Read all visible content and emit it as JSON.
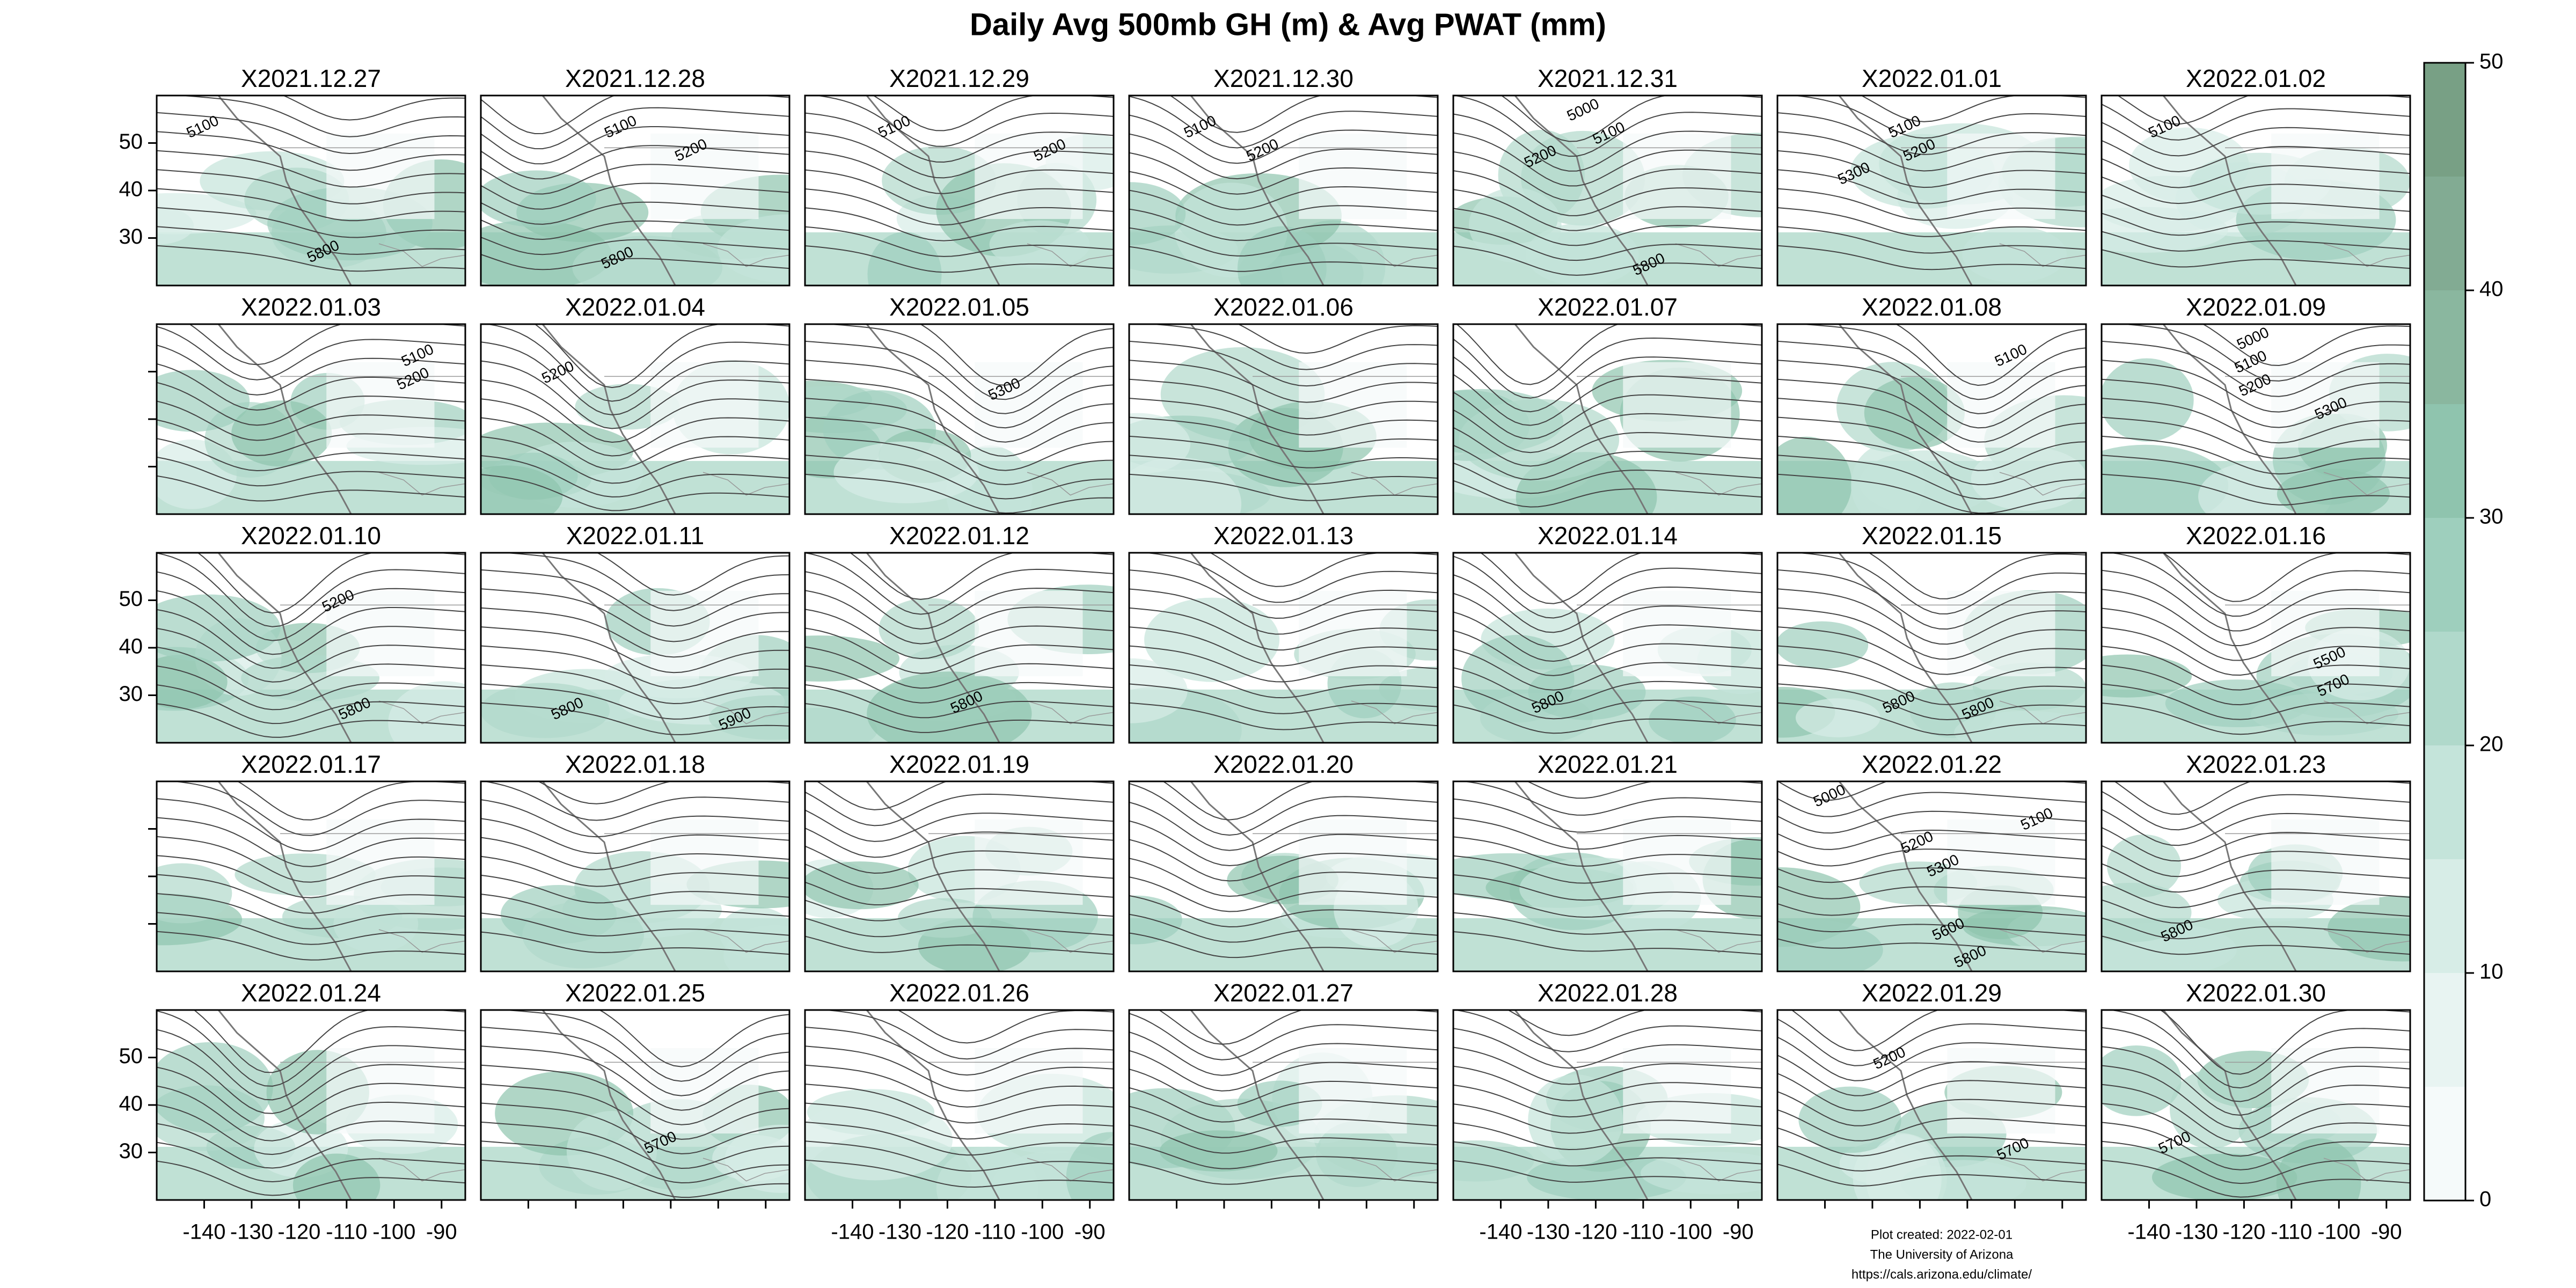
{
  "chart_data": {
    "type": "map-grid",
    "title": "Daily Avg 500mb GH (m) & Avg PWAT (mm)",
    "xlim": [
      -150,
      -85
    ],
    "ylim": [
      20,
      60
    ],
    "xticks": [
      -140,
      -130,
      -120,
      -110,
      -100,
      -90
    ],
    "yticks": [
      30,
      40,
      50
    ],
    "colorbar": {
      "lim": [
        0,
        50
      ],
      "ticks": [
        0,
        10,
        20,
        30,
        40,
        50
      ],
      "colors": [
        "#f5fafa",
        "#e8f4f2",
        "#d7ede7",
        "#c4e4da",
        "#b0d9cb",
        "#9ecfbd",
        "#8fc4ae",
        "#8ab79f",
        "#82ab93",
        "#78a085"
      ]
    },
    "panels": [
      {
        "title": "X2021.12.27",
        "contour_labels": [
          5100,
          5800
        ]
      },
      {
        "title": "X2021.12.28",
        "contour_labels": [
          5100,
          5200,
          5800
        ]
      },
      {
        "title": "X2021.12.29",
        "contour_labels": [
          5100,
          5200
        ]
      },
      {
        "title": "X2021.12.30",
        "contour_labels": [
          5100,
          5200
        ]
      },
      {
        "title": "X2021.12.31",
        "contour_labels": [
          5000,
          5100,
          5200,
          5800
        ]
      },
      {
        "title": "X2022.01.01",
        "contour_labels": [
          5100,
          5200,
          5300
        ]
      },
      {
        "title": "X2022.01.02",
        "contour_labels": [
          5100
        ]
      },
      {
        "title": "X2022.01.03",
        "contour_labels": [
          5100,
          5200
        ]
      },
      {
        "title": "X2022.01.04",
        "contour_labels": [
          5200
        ]
      },
      {
        "title": "X2022.01.05",
        "contour_labels": [
          5300
        ]
      },
      {
        "title": "X2022.01.06",
        "contour_labels": []
      },
      {
        "title": "X2022.01.07",
        "contour_labels": []
      },
      {
        "title": "X2022.01.08",
        "contour_labels": [
          5100
        ]
      },
      {
        "title": "X2022.01.09",
        "contour_labels": [
          5000,
          5100,
          5200,
          5300
        ]
      },
      {
        "title": "X2022.01.10",
        "contour_labels": [
          5200,
          5800
        ]
      },
      {
        "title": "X2022.01.11",
        "contour_labels": [
          5900,
          5800
        ]
      },
      {
        "title": "X2022.01.12",
        "contour_labels": [
          5800
        ]
      },
      {
        "title": "X2022.01.13",
        "contour_labels": []
      },
      {
        "title": "X2022.01.14",
        "contour_labels": [
          5800
        ]
      },
      {
        "title": "X2022.01.15",
        "contour_labels": [
          5800,
          5800
        ]
      },
      {
        "title": "X2022.01.16",
        "contour_labels": [
          5700,
          5500
        ]
      },
      {
        "title": "X2022.01.17",
        "contour_labels": []
      },
      {
        "title": "X2022.01.18",
        "contour_labels": []
      },
      {
        "title": "X2022.01.19",
        "contour_labels": []
      },
      {
        "title": "X2022.01.20",
        "contour_labels": []
      },
      {
        "title": "X2022.01.21",
        "contour_labels": []
      },
      {
        "title": "X2022.01.22",
        "contour_labels": [
          5000,
          5100,
          5200,
          5300,
          5800,
          5600
        ]
      },
      {
        "title": "X2022.01.23",
        "contour_labels": [
          5800
        ]
      },
      {
        "title": "X2022.01.24",
        "contour_labels": []
      },
      {
        "title": "X2022.01.25",
        "contour_labels": [
          5700
        ]
      },
      {
        "title": "X2022.01.26",
        "contour_labels": []
      },
      {
        "title": "X2022.01.27",
        "contour_labels": []
      },
      {
        "title": "X2022.01.28",
        "contour_labels": []
      },
      {
        "title": "X2022.01.29",
        "contour_labels": [
          5200,
          5700
        ]
      },
      {
        "title": "X2022.01.30",
        "contour_labels": [
          5700
        ]
      }
    ],
    "footer": [
      "Plot created: 2022-02-01",
      "The University of Arizona",
      "https://cals.arizona.edu/climate/"
    ]
  }
}
